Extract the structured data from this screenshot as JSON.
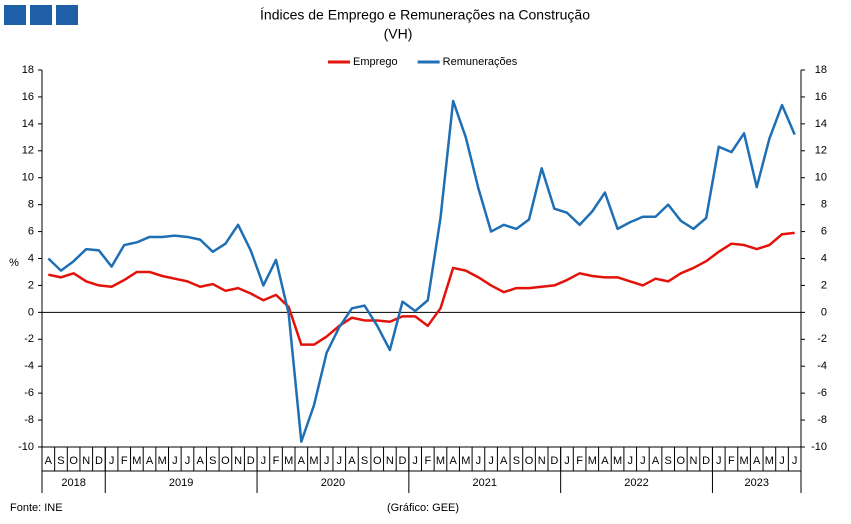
{
  "chart_data": {
    "type": "line",
    "title": "Índices de Emprego e Remunerações na Construção",
    "subtitle": "(VH)",
    "ylabel": "%",
    "source": "Fonte: INE",
    "credit": "(Gráfico: GEE)",
    "legend": "top",
    "categories": [
      "A",
      "S",
      "O",
      "N",
      "D",
      "J",
      "F",
      "M",
      "A",
      "M",
      "J",
      "J",
      "A",
      "S",
      "O",
      "N",
      "D",
      "J",
      "F",
      "M",
      "A",
      "M",
      "J",
      "J",
      "A",
      "S",
      "O",
      "N",
      "D",
      "J",
      "F",
      "M",
      "A",
      "M",
      "J",
      "J",
      "A",
      "S",
      "O",
      "N",
      "D",
      "J",
      "F",
      "M",
      "A",
      "M",
      "J",
      "J",
      "A",
      "S",
      "O",
      "N",
      "D",
      "J",
      "F",
      "M",
      "A",
      "M",
      "J",
      "J"
    ],
    "year_groups": [
      {
        "label": "2018",
        "count": 5
      },
      {
        "label": "2019",
        "count": 12
      },
      {
        "label": "2020",
        "count": 12
      },
      {
        "label": "2021",
        "count": 12
      },
      {
        "label": "2022",
        "count": 12
      },
      {
        "label": "2023",
        "count": 7
      }
    ],
    "series": [
      {
        "name": "Emprego",
        "color": "#e3120b",
        "values": [
          2.8,
          2.6,
          2.9,
          2.3,
          2.0,
          1.9,
          2.4,
          3.0,
          3.0,
          2.7,
          2.5,
          2.3,
          1.9,
          2.1,
          1.6,
          1.8,
          1.4,
          0.9,
          1.3,
          0.4,
          -2.4,
          -2.4,
          -1.8,
          -1.0,
          -0.4,
          -0.6,
          -0.6,
          -0.7,
          -0.3,
          -0.3,
          -1.0,
          0.3,
          3.3,
          3.1,
          2.6,
          2.0,
          1.5,
          1.8,
          1.8,
          1.9,
          2.0,
          2.4,
          2.9,
          2.7,
          2.6,
          2.6,
          2.3,
          2.0,
          2.5,
          2.3,
          2.9,
          3.3,
          3.8,
          4.5,
          5.1,
          5.0,
          4.7,
          5.0,
          5.8,
          5.9
        ]
      },
      {
        "name": "Remunerações",
        "color": "#1f6fb5",
        "values": [
          4.0,
          3.1,
          3.8,
          4.7,
          4.6,
          3.4,
          5.0,
          5.2,
          5.6,
          5.6,
          5.7,
          5.6,
          5.4,
          4.5,
          5.1,
          6.5,
          4.6,
          2.0,
          3.9,
          -0.1,
          -9.6,
          -6.9,
          -3.0,
          -1.1,
          0.3,
          0.5,
          -1.0,
          -2.8,
          0.8,
          0.1,
          0.9,
          7.0,
          15.7,
          13.0,
          9.2,
          6.0,
          6.5,
          6.2,
          6.9,
          10.7,
          7.7,
          7.4,
          6.5,
          7.5,
          8.9,
          6.2,
          6.7,
          7.1,
          7.1,
          8.0,
          6.8,
          6.2,
          7.0,
          12.3,
          11.9,
          13.3,
          9.3,
          12.9,
          15.4,
          13.2
        ]
      }
    ],
    "ylim": [
      -10,
      18
    ],
    "yticks": [
      -10,
      -8,
      -6,
      -4,
      -2,
      0,
      2,
      4,
      6,
      8,
      10,
      12,
      14,
      16,
      18
    ],
    "y2lim": [
      -10,
      18
    ],
    "y2ticks": [
      -10,
      -8,
      -6,
      -4,
      -2,
      0,
      2,
      4,
      6,
      8,
      10,
      12,
      14,
      16,
      18
    ],
    "grid": false
  }
}
